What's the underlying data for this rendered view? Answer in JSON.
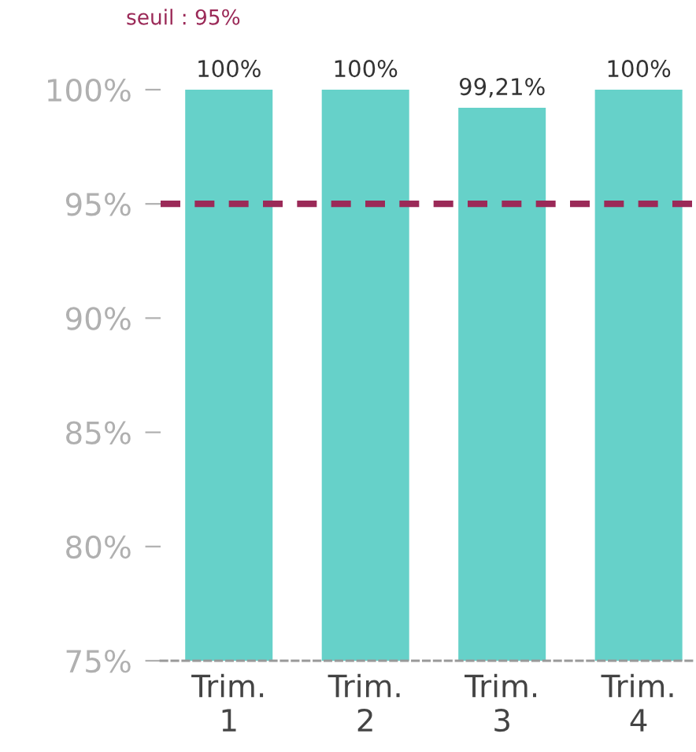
{
  "chart_data": {
    "type": "bar",
    "categories": [
      "Trim.\n1",
      "Trim.\n2",
      "Trim.\n3",
      "Trim.\n4"
    ],
    "values": [
      100,
      100,
      99.21,
      100
    ],
    "color": "#66d1c9",
    "value_labels": [
      "100%",
      "100%",
      "99,21%",
      "100%"
    ],
    "ylim": [
      75,
      100
    ],
    "yticks": [
      {
        "value": 75,
        "label": "75%"
      },
      {
        "value": 80,
        "label": "80%"
      },
      {
        "value": 85,
        "label": "85%"
      },
      {
        "value": 90,
        "label": "90%"
      },
      {
        "value": 95,
        "label": "95%"
      },
      {
        "value": 100,
        "label": "100%"
      }
    ],
    "ref_lines": [
      {
        "axis": "y",
        "value": 95,
        "label": "seuil : 95%",
        "color": "#9b2a58",
        "line_style": "dashed"
      }
    ],
    "grid": false,
    "legend": false
  }
}
